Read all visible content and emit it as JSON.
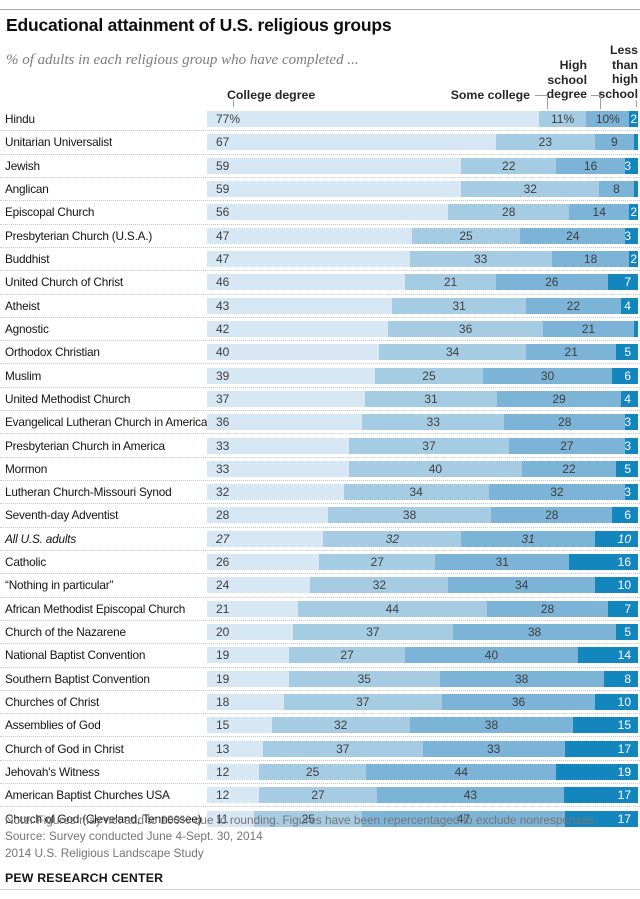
{
  "header": {
    "title": "Educational attainment of U.S. religious groups",
    "subtitle": "% of adults in each religious group who have completed ..."
  },
  "columns": {
    "college_degree": "College degree",
    "some_college": "Some college",
    "high_school_degree": "High\nschool\ndegree",
    "less_than_high_school": "Less\nthan\nhigh\nschool"
  },
  "chart_data": {
    "type": "bar",
    "orientation": "horizontal-stacked",
    "stack_total": 100,
    "grid": false,
    "legend_position": "top-as-column-headers",
    "series": [
      "College degree",
      "Some college",
      "High school degree",
      "Less than high school"
    ],
    "series_keys": [
      "college-degree",
      "some-college",
      "high-school-degree",
      "less-than-high-school"
    ],
    "colors": [
      "#d7e7f3",
      "#a6cce4",
      "#7cb4d8",
      "#1386bd"
    ],
    "rows": [
      {
        "label": "Hindu",
        "values": [
          77,
          11,
          10,
          2
        ],
        "value_labels": [
          "77%",
          "11%",
          "10%",
          "2"
        ]
      },
      {
        "label": "Unitarian Universalist",
        "values": [
          67,
          23,
          9,
          1
        ],
        "value_labels": [
          "67",
          "23",
          "9",
          ""
        ]
      },
      {
        "label": "Jewish",
        "values": [
          59,
          22,
          16,
          3
        ],
        "value_labels": [
          "59",
          "22",
          "16",
          "3"
        ]
      },
      {
        "label": "Anglican",
        "values": [
          59,
          32,
          8,
          1
        ],
        "value_labels": [
          "59",
          "32",
          "8",
          ""
        ]
      },
      {
        "label": "Episcopal Church",
        "values": [
          56,
          28,
          14,
          2
        ],
        "value_labels": [
          "56",
          "28",
          "14",
          "2"
        ]
      },
      {
        "label": "Presbyterian Church (U.S.A.)",
        "values": [
          47,
          25,
          24,
          3
        ],
        "value_labels": [
          "47",
          "25",
          "24",
          "3"
        ]
      },
      {
        "label": "Buddhist",
        "values": [
          47,
          33,
          18,
          2
        ],
        "value_labels": [
          "47",
          "33",
          "18",
          "2"
        ]
      },
      {
        "label": "United Church of Christ",
        "values": [
          46,
          21,
          26,
          7
        ],
        "value_labels": [
          "46",
          "21",
          "26",
          "7"
        ]
      },
      {
        "label": "Atheist",
        "values": [
          43,
          31,
          22,
          4
        ],
        "value_labels": [
          "43",
          "31",
          "22",
          "4"
        ]
      },
      {
        "label": "Agnostic",
        "values": [
          42,
          36,
          21,
          1
        ],
        "value_labels": [
          "42",
          "36",
          "21",
          ""
        ]
      },
      {
        "label": "Orthodox Christian",
        "values": [
          40,
          34,
          21,
          5
        ],
        "value_labels": [
          "40",
          "34",
          "21",
          "5"
        ]
      },
      {
        "label": "Muslim",
        "values": [
          39,
          25,
          30,
          6
        ],
        "value_labels": [
          "39",
          "25",
          "30",
          "6"
        ]
      },
      {
        "label": "United Methodist Church",
        "values": [
          37,
          31,
          29,
          4
        ],
        "value_labels": [
          "37",
          "31",
          "29",
          "4"
        ]
      },
      {
        "label": "Evangelical Lutheran Church in America",
        "values": [
          36,
          33,
          28,
          3
        ],
        "value_labels": [
          "36",
          "33",
          "28",
          "3"
        ]
      },
      {
        "label": "Presbyterian Church in America",
        "values": [
          33,
          37,
          27,
          3
        ],
        "value_labels": [
          "33",
          "37",
          "27",
          "3"
        ]
      },
      {
        "label": "Mormon",
        "values": [
          33,
          40,
          22,
          5
        ],
        "value_labels": [
          "33",
          "40",
          "22",
          "5"
        ]
      },
      {
        "label": "Lutheran Church-Missouri Synod",
        "values": [
          32,
          34,
          32,
          3
        ],
        "value_labels": [
          "32",
          "34",
          "32",
          "3"
        ]
      },
      {
        "label": "Seventh-day Adventist",
        "values": [
          28,
          38,
          28,
          6
        ],
        "value_labels": [
          "28",
          "38",
          "28",
          "6"
        ]
      },
      {
        "label": "All U.S. adults",
        "italic": true,
        "values": [
          27,
          32,
          31,
          10
        ],
        "value_labels": [
          "27",
          "32",
          "31",
          "10"
        ]
      },
      {
        "label": "Catholic",
        "values": [
          26,
          27,
          31,
          16
        ],
        "value_labels": [
          "26",
          "27",
          "31",
          "16"
        ]
      },
      {
        "label": "“Nothing in particular”",
        "values": [
          24,
          32,
          34,
          10
        ],
        "value_labels": [
          "24",
          "32",
          "34",
          "10"
        ]
      },
      {
        "label": "African Methodist Episcopal Church",
        "values": [
          21,
          44,
          28,
          7
        ],
        "value_labels": [
          "21",
          "44",
          "28",
          "7"
        ]
      },
      {
        "label": "Church of the Nazarene",
        "values": [
          20,
          37,
          38,
          5
        ],
        "value_labels": [
          "20",
          "37",
          "38",
          "5"
        ]
      },
      {
        "label": "National Baptist Convention",
        "values": [
          19,
          27,
          40,
          14
        ],
        "value_labels": [
          "19",
          "27",
          "40",
          "14"
        ]
      },
      {
        "label": "Southern Baptist Convention",
        "values": [
          19,
          35,
          38,
          8
        ],
        "value_labels": [
          "19",
          "35",
          "38",
          "8"
        ]
      },
      {
        "label": "Churches of Christ",
        "values": [
          18,
          37,
          36,
          10
        ],
        "value_labels": [
          "18",
          "37",
          "36",
          "10"
        ]
      },
      {
        "label": "Assemblies of God",
        "values": [
          15,
          32,
          38,
          15
        ],
        "value_labels": [
          "15",
          "32",
          "38",
          "15"
        ]
      },
      {
        "label": "Church of God in Christ",
        "values": [
          13,
          37,
          33,
          17
        ],
        "value_labels": [
          "13",
          "37",
          "33",
          "17"
        ]
      },
      {
        "label": "Jehovah's Witness",
        "values": [
          12,
          25,
          44,
          19
        ],
        "value_labels": [
          "12",
          "25",
          "44",
          "19"
        ]
      },
      {
        "label": "American Baptist Churches USA",
        "values": [
          12,
          27,
          43,
          17
        ],
        "value_labels": [
          "12",
          "27",
          "43",
          "17"
        ]
      },
      {
        "label": "Church of God (Cleveland, Tennessee)",
        "values": [
          11,
          25,
          47,
          17
        ],
        "value_labels": [
          "11",
          "25",
          "47",
          "17"
        ]
      }
    ]
  },
  "footer": {
    "note": "Note: Figures may not add to 100% due to rounding. Figures have been repercentaged to exclude nonresponses.",
    "source": "Source: Survey conducted June 4-Sept. 30, 2014",
    "study": "2014 U.S. Religious Landscape Study",
    "brand": "PEW RESEARCH CENTER"
  }
}
